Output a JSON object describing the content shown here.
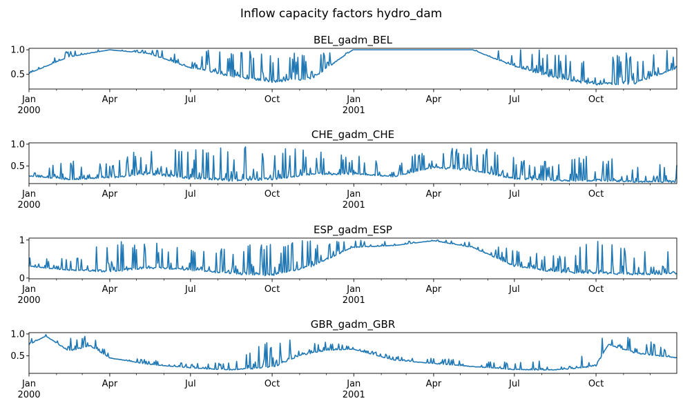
{
  "figure": {
    "title": "Inflow capacity factors hydro_dam",
    "line_color": "#1f77b4"
  },
  "chart_data": [
    {
      "type": "line",
      "title": "BEL_gadm_BEL",
      "x_range": [
        "2000-01-01",
        "2001-12-31"
      ],
      "ylim": [
        0.2,
        1.03
      ],
      "yticks": [
        0.5,
        1.0
      ],
      "ytick_labels": [
        "0.5",
        "1.0"
      ],
      "envelope": {
        "x": [
          "2000-01-01",
          "2000-02-15",
          "2000-04-01",
          "2000-05-15",
          "2000-07-01",
          "2000-08-15",
          "2000-10-01",
          "2000-11-15",
          "2000-12-31",
          "2001-02-15",
          "2001-04-01",
          "2001-05-15",
          "2001-07-01",
          "2001-08-15",
          "2001-10-01",
          "2001-11-15",
          "2001-12-31"
        ],
        "min": [
          0.52,
          0.85,
          1.0,
          0.92,
          0.62,
          0.45,
          0.33,
          0.4,
          1.0,
          1.0,
          1.0,
          1.0,
          0.65,
          0.42,
          0.27,
          0.3,
          0.62
        ],
        "max": [
          0.55,
          1.0,
          1.0,
          1.0,
          1.0,
          1.0,
          1.0,
          1.0,
          1.0,
          1.0,
          1.0,
          1.0,
          1.0,
          1.0,
          1.0,
          1.0,
          1.0
        ]
      }
    },
    {
      "type": "line",
      "title": "CHE_gadm_CHE",
      "x_range": [
        "2000-01-01",
        "2001-12-31"
      ],
      "ylim": [
        0.1,
        1.03
      ],
      "yticks": [
        0.5,
        1.0
      ],
      "ytick_labels": [
        "0.5",
        "1.0"
      ],
      "envelope": {
        "x": [
          "2000-01-01",
          "2000-02-15",
          "2000-04-01",
          "2000-05-15",
          "2000-07-01",
          "2000-08-15",
          "2000-10-01",
          "2000-11-15",
          "2000-12-31",
          "2001-02-15",
          "2001-04-01",
          "2001-05-15",
          "2001-07-01",
          "2001-08-15",
          "2001-10-01",
          "2001-11-15",
          "2001-12-31"
        ],
        "min": [
          0.27,
          0.18,
          0.22,
          0.3,
          0.2,
          0.15,
          0.18,
          0.3,
          0.3,
          0.25,
          0.45,
          0.38,
          0.2,
          0.15,
          0.15,
          0.13,
          0.12
        ],
        "max": [
          0.3,
          0.7,
          0.55,
          1.0,
          0.9,
          0.95,
          0.95,
          0.9,
          0.75,
          0.6,
          1.0,
          1.0,
          0.75,
          0.6,
          0.85,
          0.5,
          0.65
        ]
      }
    },
    {
      "type": "line",
      "title": "ESP_gadm_ESP",
      "x_range": [
        "2000-01-01",
        "2001-12-31"
      ],
      "ylim": [
        -0.02,
        1.05
      ],
      "yticks": [
        0.0,
        1.0
      ],
      "ytick_labels": [
        "0",
        "1"
      ],
      "envelope": {
        "x": [
          "2000-01-01",
          "2000-02-15",
          "2000-04-01",
          "2000-05-15",
          "2000-07-01",
          "2000-08-15",
          "2000-10-01",
          "2000-11-15",
          "2000-12-31",
          "2001-02-15",
          "2001-04-01",
          "2001-05-15",
          "2001-07-01",
          "2001-08-15",
          "2001-10-01",
          "2001-11-15",
          "2001-12-31"
        ],
        "min": [
          0.3,
          0.2,
          0.15,
          0.25,
          0.2,
          0.1,
          0.05,
          0.3,
          0.8,
          0.85,
          0.98,
          0.8,
          0.3,
          0.15,
          0.1,
          0.08,
          0.1
        ],
        "max": [
          0.6,
          0.5,
          1.0,
          1.0,
          0.75,
          0.8,
          1.0,
          1.0,
          1.0,
          1.0,
          1.0,
          1.0,
          0.75,
          0.6,
          1.0,
          0.75,
          0.8
        ]
      }
    },
    {
      "type": "line",
      "title": "GBR_gadm_GBR",
      "x_range": [
        "2000-01-01",
        "2001-12-31"
      ],
      "ylim": [
        0.1,
        1.03
      ],
      "yticks": [
        0.5,
        1.0
      ],
      "ytick_labels": [
        "0.5",
        "1.0"
      ],
      "envelope": {
        "x": [
          "2000-01-01",
          "2000-01-20",
          "2000-02-15",
          "2000-03-10",
          "2000-04-01",
          "2000-05-15",
          "2000-07-01",
          "2000-08-15",
          "2000-10-01",
          "2000-11-01",
          "2000-12-01",
          "2000-12-31",
          "2001-02-15",
          "2001-04-01",
          "2001-05-15",
          "2001-07-01",
          "2001-08-15",
          "2001-09-15",
          "2001-10-01",
          "2001-10-15",
          "2001-11-15",
          "2001-12-31"
        ],
        "min": [
          0.75,
          0.95,
          0.6,
          0.72,
          0.45,
          0.3,
          0.22,
          0.17,
          0.22,
          0.5,
          0.62,
          0.65,
          0.4,
          0.32,
          0.25,
          0.18,
          0.17,
          0.22,
          0.25,
          0.75,
          0.55,
          0.45
        ],
        "max": [
          0.9,
          1.0,
          1.0,
          1.0,
          0.55,
          0.4,
          0.35,
          0.35,
          1.0,
          0.85,
          0.85,
          0.7,
          0.5,
          0.45,
          0.4,
          0.35,
          0.4,
          0.5,
          1.0,
          0.95,
          0.95,
          0.6
        ]
      }
    }
  ],
  "x_axis": {
    "major_ticks": [
      {
        "date": "2000-01-01",
        "label": "Jan",
        "year": "2000"
      },
      {
        "date": "2000-04-01",
        "label": "Apr",
        "year": ""
      },
      {
        "date": "2000-07-01",
        "label": "Jul",
        "year": ""
      },
      {
        "date": "2000-10-01",
        "label": "Oct",
        "year": ""
      },
      {
        "date": "2001-01-01",
        "label": "Jan",
        "year": "2001"
      },
      {
        "date": "2001-04-01",
        "label": "Apr",
        "year": ""
      },
      {
        "date": "2001-07-01",
        "label": "Jul",
        "year": ""
      },
      {
        "date": "2001-10-01",
        "label": "Oct",
        "year": ""
      }
    ]
  }
}
